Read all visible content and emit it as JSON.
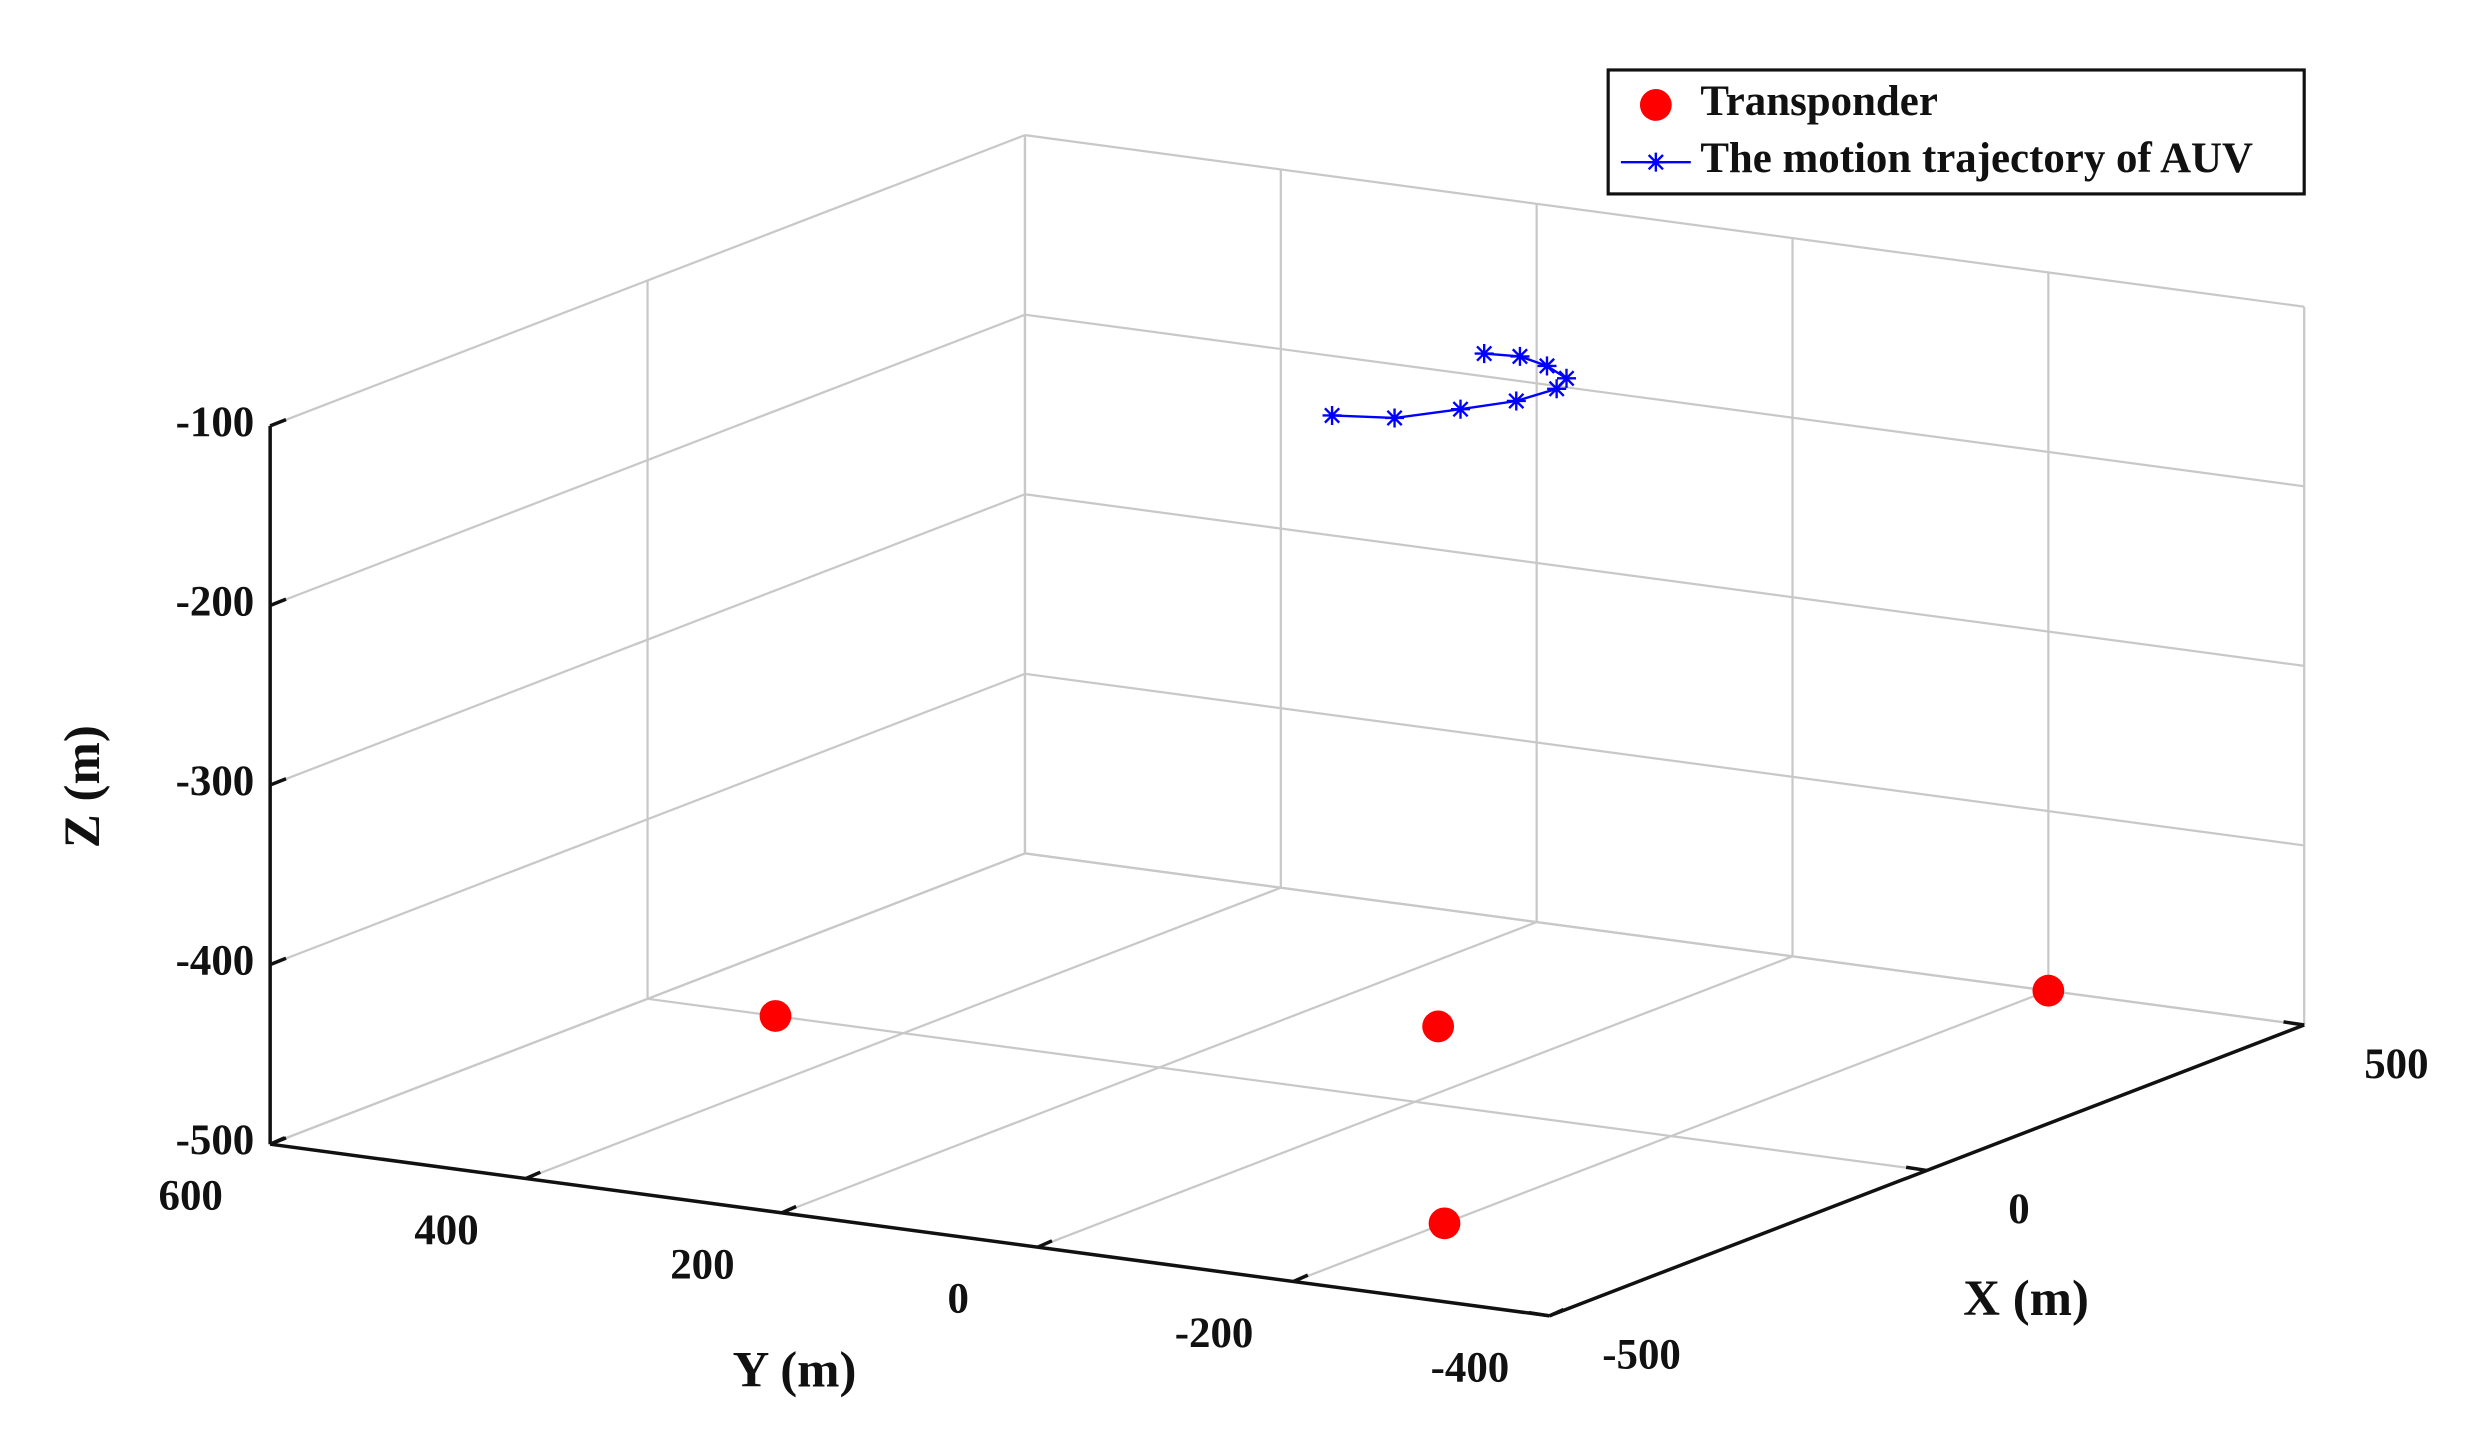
{
  "chart_data": {
    "type": "scatter3d",
    "xlabel": "X (m)",
    "ylabel": "Y (m)",
    "zlabel": "Z (m)",
    "xlim": [
      -500,
      500
    ],
    "ylim": [
      -400,
      600
    ],
    "zlim": [
      -500,
      -100
    ],
    "xticks": [
      -500,
      0,
      500
    ],
    "yticks": [
      -400,
      -200,
      0,
      200,
      400,
      600
    ],
    "zticks": [
      -500,
      -400,
      -300,
      -200,
      -100
    ],
    "grid": true,
    "legend": "northeast",
    "series": [
      {
        "name": "Transponder",
        "color": "#ff0000",
        "marker": "o",
        "x": [
          0,
          200,
          500,
          -300
        ],
        "y": [
          500,
          100,
          -200,
          -200
        ],
        "z": [
          -500,
          -500,
          -500,
          -500
        ]
      },
      {
        "name": "The motion trajectory of AUV",
        "color": "#0000ff",
        "marker": "*",
        "x": [
          -110,
          -95,
          -50,
          -10,
          35,
          65,
          90,
          105,
          100
        ],
        "y": [
          0,
          -40,
          -65,
          -85,
          -90,
          -80,
          -50,
          -20,
          5
        ],
        "z": [
          -100,
          -100,
          -100,
          -100,
          -100,
          -100,
          -100,
          -100,
          -100
        ]
      }
    ]
  }
}
